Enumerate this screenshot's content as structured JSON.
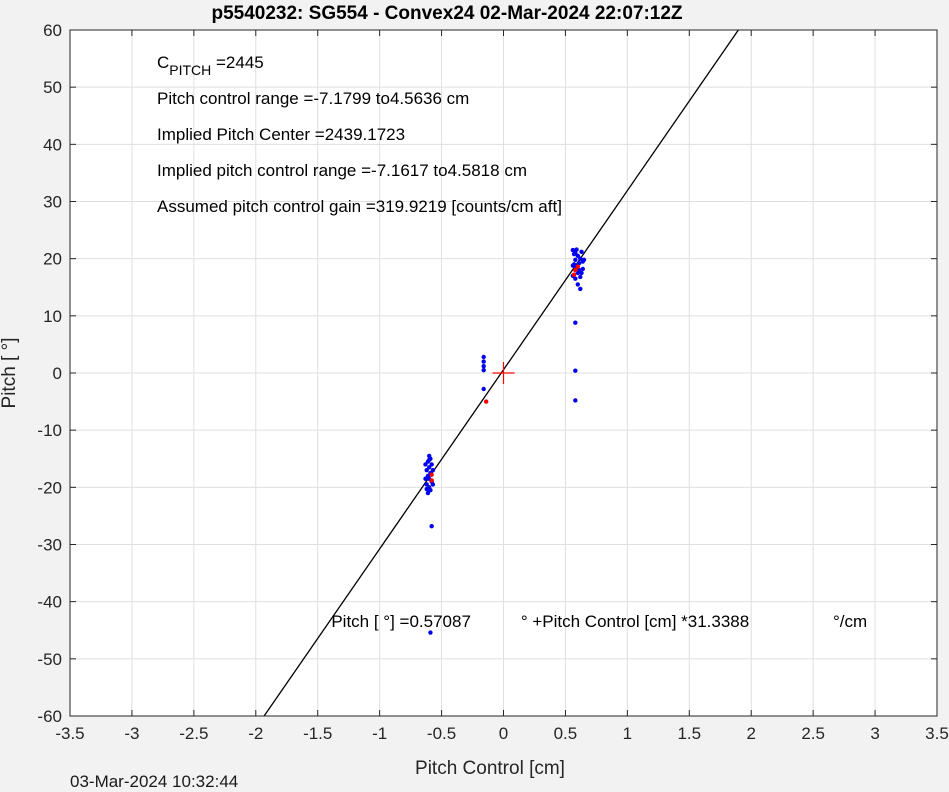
{
  "chart_data": {
    "type": "scatter",
    "title": "p5540232: SG554 - Convex24 02-Mar-2024 22:07:12Z",
    "xlabel": "Pitch Control [cm]",
    "ylabel": "Pitch [  °]",
    "xlim": [
      -3.5,
      3.5
    ],
    "ylim": [
      -60,
      60
    ],
    "xticks": [
      -3.5,
      -3,
      -2.5,
      -2,
      -1.5,
      -1,
      -0.5,
      0,
      0.5,
      1,
      1.5,
      2,
      2.5,
      3,
      3.5
    ],
    "yticks": [
      -60,
      -50,
      -40,
      -30,
      -20,
      -10,
      0,
      10,
      20,
      30,
      40,
      50,
      60
    ],
    "xtick_labels": [
      "-3.5",
      "-3",
      "-2.5",
      "-2",
      "-1.5",
      "-1",
      "-0.5",
      "0",
      "0.5",
      "1",
      "1.5",
      "2",
      "2.5",
      "3",
      "3.5"
    ],
    "ytick_labels": [
      "-60",
      "-50",
      "-40",
      "-30",
      "-20",
      "-10",
      "0",
      "10",
      "20",
      "30",
      "40",
      "50",
      "60"
    ],
    "grid": true,
    "fit_line": {
      "intercept": 0.57087,
      "slope": 31.3388,
      "color": "#000000"
    },
    "center_marker": {
      "x": 0,
      "y": 0,
      "color": "#ff0000"
    },
    "annotations": [
      {
        "prefix": "C",
        "subscript": "PITCH",
        "text": " =2445"
      },
      {
        "text": "Pitch control range =-7.1799 to4.5636 cm"
      },
      {
        "text": "Implied Pitch Center =2439.1723"
      },
      {
        "text": "Implied pitch control range =-7.1617 to4.5818 cm"
      },
      {
        "text": "Assumed pitch control gain =319.9219 [counts/cm aft]"
      }
    ],
    "equation": [
      {
        "text": "Pitch [  °] =0.57087",
        "x": -1.39
      },
      {
        "text": "° +Pitch Control [cm] *31.3388",
        "x": 0.14
      },
      {
        "text": "°/cm",
        "x": 2.66
      }
    ],
    "series": [
      {
        "color": "#0000ee",
        "points": [
          [
            -0.6,
            -14.5
          ],
          [
            -0.59,
            -15.0
          ],
          [
            -0.61,
            -15.5
          ],
          [
            -0.58,
            -16.0
          ],
          [
            -0.6,
            -16.5
          ],
          [
            -0.62,
            -17.0
          ],
          [
            -0.59,
            -17.5
          ],
          [
            -0.61,
            -18.0
          ],
          [
            -0.6,
            -18.5
          ],
          [
            -0.58,
            -19.0
          ],
          [
            -0.62,
            -19.5
          ],
          [
            -0.6,
            -20.0
          ],
          [
            -0.59,
            -20.5
          ],
          [
            -0.61,
            -21.0
          ],
          [
            -0.63,
            -16.0
          ],
          [
            -0.57,
            -17.0
          ],
          [
            -0.63,
            -18.5
          ],
          [
            -0.57,
            -19.5
          ],
          [
            -0.6,
            -15.2
          ],
          [
            -0.62,
            -20.3
          ],
          [
            -0.58,
            -26.8
          ],
          [
            -0.59,
            -45.4
          ],
          [
            -0.16,
            2.8
          ],
          [
            -0.16,
            2.0
          ],
          [
            -0.16,
            1.2
          ],
          [
            -0.16,
            0.5
          ],
          [
            -0.16,
            -2.8
          ],
          [
            0.56,
            21.5
          ],
          [
            0.58,
            21.0
          ],
          [
            0.6,
            20.5
          ],
          [
            0.62,
            20.0
          ],
          [
            0.64,
            19.5
          ],
          [
            0.57,
            19.0
          ],
          [
            0.59,
            18.5
          ],
          [
            0.61,
            18.0
          ],
          [
            0.63,
            17.5
          ],
          [
            0.56,
            17.0
          ],
          [
            0.58,
            16.5
          ],
          [
            0.6,
            17.5
          ],
          [
            0.62,
            16.8
          ],
          [
            0.64,
            18.2
          ],
          [
            0.57,
            20.8
          ],
          [
            0.59,
            21.6
          ],
          [
            0.61,
            19.2
          ],
          [
            0.63,
            21.2
          ],
          [
            0.65,
            19.8
          ],
          [
            0.6,
            15.5
          ],
          [
            0.62,
            14.7
          ],
          [
            0.58,
            19.8
          ],
          [
            0.56,
            18.8
          ],
          [
            0.58,
            8.8
          ],
          [
            0.58,
            0.4
          ],
          [
            0.58,
            -4.8
          ]
        ]
      },
      {
        "color": "#ff0000",
        "points": [
          [
            -0.58,
            -17.8
          ],
          [
            -0.58,
            -18.8
          ],
          [
            -0.14,
            -5.0
          ],
          [
            0.58,
            18.0
          ],
          [
            0.6,
            18.6
          ],
          [
            0.57,
            17.2
          ]
        ]
      }
    ]
  },
  "footer": {
    "timestamp": "03-Mar-2024 10:32:44"
  }
}
